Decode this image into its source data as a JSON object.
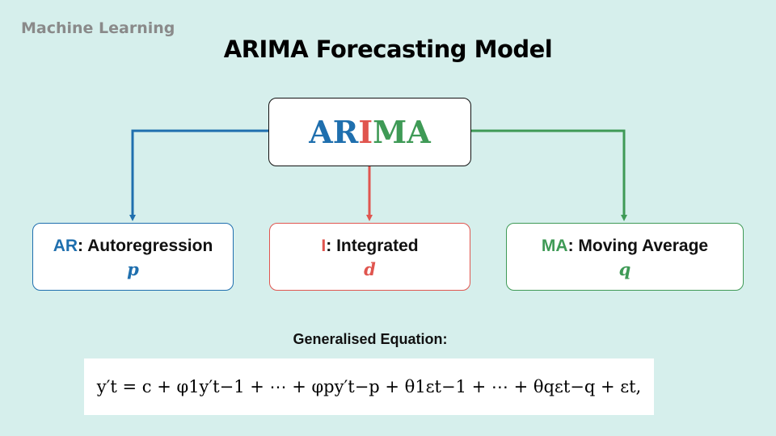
{
  "header": {
    "topic": "Machine Learning",
    "title": "ARIMA Forecasting Model"
  },
  "central": {
    "part_ar": "AR",
    "part_i": "I",
    "part_ma": "MA"
  },
  "components": [
    {
      "abbr": "AR",
      "name": ": Autoregression",
      "param": "p",
      "color": "#1f6fae"
    },
    {
      "abbr": "I",
      "name": ": Integrated",
      "param": "d",
      "color": "#e0554f"
    },
    {
      "abbr": "MA",
      "name": ": Moving Average",
      "param": "q",
      "color": "#3f9a56"
    }
  ],
  "equation": {
    "caption": "Generalised Equation:",
    "text": "y′t = c + φ1y′t−1 + ⋯ + φpy′t−p + θ1εt−1 + ⋯ + θqεt−q + εt,"
  }
}
